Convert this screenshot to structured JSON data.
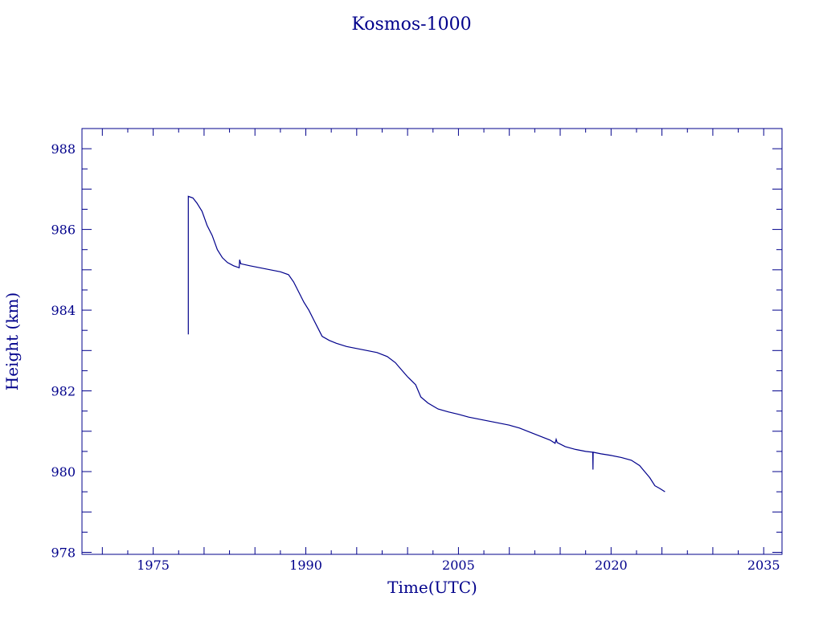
{
  "chart_data": {
    "type": "line",
    "title": "Kosmos-1000",
    "xlabel": "Time(UTC)",
    "ylabel": "Height (km)",
    "xlim": [
      1968.0,
      2036.8
    ],
    "ylim": [
      977.95,
      988.5
    ],
    "xticks": [
      1975,
      1990,
      2005,
      2020,
      2035
    ],
    "yticks": [
      978,
      980,
      982,
      984,
      986,
      988
    ],
    "grid": false,
    "color": "#00008b",
    "series": [
      {
        "values": [
          [
            1978.45,
            983.4
          ],
          [
            1978.45,
            986.82
          ],
          [
            1978.9,
            986.78
          ],
          [
            1979.3,
            986.65
          ],
          [
            1979.8,
            986.45
          ],
          [
            1980.3,
            986.1
          ],
          [
            1980.8,
            985.85
          ],
          [
            1981.3,
            985.5
          ],
          [
            1981.8,
            985.3
          ],
          [
            1982.3,
            985.18
          ],
          [
            1982.9,
            985.1
          ],
          [
            1983.45,
            985.05
          ],
          [
            1983.5,
            985.25
          ],
          [
            1983.6,
            985.15
          ],
          [
            1984.5,
            985.1
          ],
          [
            1985.5,
            985.05
          ],
          [
            1986.5,
            985.0
          ],
          [
            1987.5,
            984.95
          ],
          [
            1988.3,
            984.88
          ],
          [
            1988.8,
            984.7
          ],
          [
            1989.3,
            984.45
          ],
          [
            1989.8,
            984.2
          ],
          [
            1990.3,
            984.0
          ],
          [
            1990.8,
            983.75
          ],
          [
            1991.3,
            983.5
          ],
          [
            1991.6,
            983.35
          ],
          [
            1992.3,
            983.25
          ],
          [
            1993.0,
            983.18
          ],
          [
            1994.0,
            983.1
          ],
          [
            1995.0,
            983.05
          ],
          [
            1996.0,
            983.0
          ],
          [
            1997.0,
            982.95
          ],
          [
            1998.0,
            982.85
          ],
          [
            1998.8,
            982.7
          ],
          [
            1999.3,
            982.55
          ],
          [
            2000.0,
            982.35
          ],
          [
            2000.8,
            982.15
          ],
          [
            2001.3,
            981.85
          ],
          [
            2002.0,
            981.7
          ],
          [
            2003.0,
            981.55
          ],
          [
            2004.0,
            981.48
          ],
          [
            2005.0,
            981.42
          ],
          [
            2006.0,
            981.35
          ],
          [
            2007.0,
            981.3
          ],
          [
            2008.0,
            981.25
          ],
          [
            2009.0,
            981.2
          ],
          [
            2010.0,
            981.15
          ],
          [
            2011.0,
            981.08
          ],
          [
            2012.0,
            980.98
          ],
          [
            2013.0,
            980.88
          ],
          [
            2014.0,
            980.78
          ],
          [
            2014.5,
            980.7
          ],
          [
            2014.6,
            980.8
          ],
          [
            2014.7,
            980.72
          ],
          [
            2015.5,
            980.62
          ],
          [
            2016.5,
            980.55
          ],
          [
            2017.5,
            980.5
          ],
          [
            2018.2,
            980.48
          ],
          [
            2018.22,
            980.05
          ],
          [
            2018.24,
            980.48
          ],
          [
            2019.0,
            980.44
          ],
          [
            2020.0,
            980.4
          ],
          [
            2021.0,
            980.35
          ],
          [
            2022.0,
            980.28
          ],
          [
            2022.8,
            980.15
          ],
          [
            2023.3,
            980.0
          ],
          [
            2023.8,
            979.85
          ],
          [
            2024.3,
            979.65
          ],
          [
            2024.8,
            979.58
          ],
          [
            2025.3,
            979.5
          ]
        ]
      }
    ]
  }
}
